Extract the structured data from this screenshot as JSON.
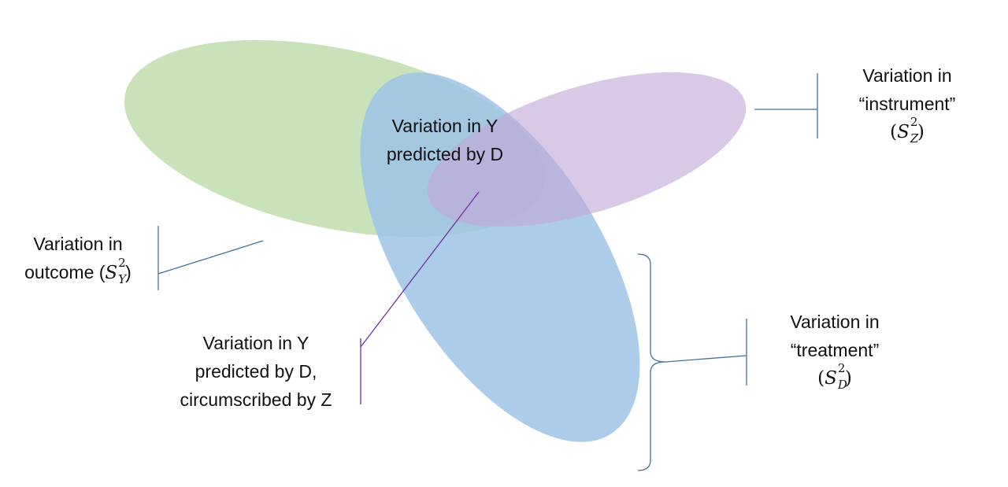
{
  "labels": {
    "outcome": {
      "line1": "Variation in",
      "line2": "outcome (",
      "symbol": "S",
      "superscript": "2",
      "subscript": "Y",
      "close": ")"
    },
    "instrument": {
      "line1": "Variation in",
      "line2": "“instrument”",
      "open": "(",
      "symbol": "S",
      "superscript": "2",
      "subscript": "Z",
      "close": ")"
    },
    "treatment": {
      "line1": "Variation in",
      "line2": "“treatment”",
      "open": "(",
      "symbol": "S",
      "superscript": "2",
      "subscript": "D",
      "close": ")"
    },
    "predicted": {
      "line1": "Variation in Y",
      "line2": "predicted by D"
    },
    "circumscribed": {
      "line1": "Variation in Y",
      "line2": "predicted by D,",
      "line3": "circumscribed by Z"
    }
  },
  "colors": {
    "outcome_ellipse": "#c5e0b4",
    "treatment_ellipse": "#9dc3e6",
    "instrument_ellipse": "#c3a6d8",
    "bracket": "#41719c",
    "pointer": "#7030a0"
  }
}
